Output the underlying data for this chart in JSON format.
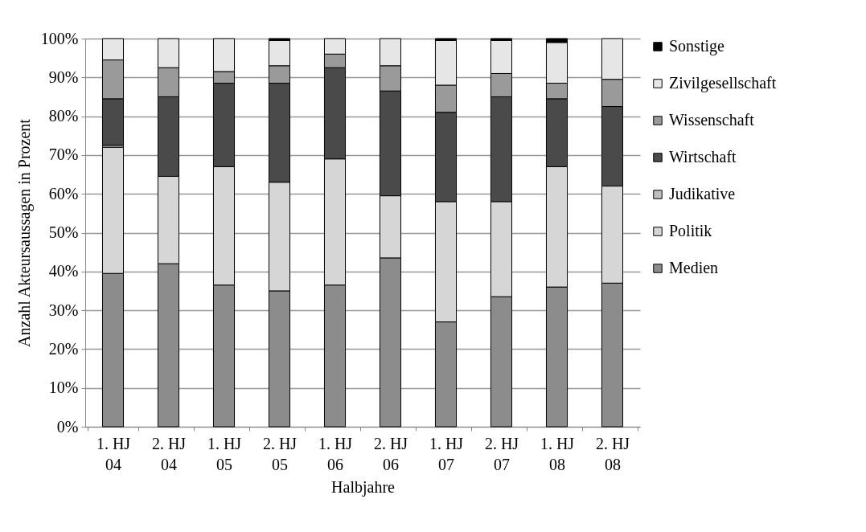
{
  "chart_data": {
    "type": "bar",
    "stacked": true,
    "xlabel": "Halbjahre",
    "ylabel": "Anzahl Akteursaussagen in Prozent",
    "categories": [
      "1. HJ 04",
      "2. HJ 04",
      "1. HJ 05",
      "2. HJ 05",
      "1. HJ 06",
      "2. HJ 06",
      "1. HJ 07",
      "2. HJ 07",
      "1. HJ 08",
      "2. HJ 08"
    ],
    "series": [
      {
        "name": "Medien",
        "color": "#8c8c8c",
        "values": [
          39.5,
          42,
          36.5,
          35,
          36.5,
          43.5,
          27,
          33.5,
          36,
          37
        ]
      },
      {
        "name": "Politik",
        "color": "#d6d6d6",
        "values": [
          32.5,
          22.5,
          30.5,
          28,
          32.5,
          16,
          31,
          24.5,
          31,
          25
        ]
      },
      {
        "name": "Judikative",
        "color": "#bfbfbf",
        "values": [
          0.5,
          0,
          0,
          0,
          0,
          0,
          0,
          0,
          0,
          0
        ]
      },
      {
        "name": "Wirtschaft",
        "color": "#4a4a4a",
        "values": [
          12,
          20.5,
          21.5,
          25.5,
          23.5,
          27,
          23,
          27,
          17.5,
          20.5
        ]
      },
      {
        "name": "Wissenschaft",
        "color": "#9a9a9a",
        "values": [
          10,
          7.5,
          3,
          4.5,
          3.5,
          6.5,
          7,
          6,
          4,
          7
        ]
      },
      {
        "name": "Zivilgesellschaft",
        "color": "#e6e6e6",
        "values": [
          5.5,
          7.5,
          8.5,
          6.5,
          4,
          7,
          11.5,
          8.5,
          10.5,
          10.5
        ]
      },
      {
        "name": "Sonstige",
        "color": "#000000",
        "values": [
          0,
          0,
          0,
          0.5,
          0,
          0,
          0.5,
          0.5,
          1,
          0
        ]
      }
    ],
    "ylim": [
      0,
      100
    ],
    "yticks": [
      {
        "value": 0,
        "label": "0%"
      },
      {
        "value": 10,
        "label": "10%"
      },
      {
        "value": 20,
        "label": "20%"
      },
      {
        "value": 30,
        "label": "30%"
      },
      {
        "value": 40,
        "label": "40%"
      },
      {
        "value": 50,
        "label": "50%"
      },
      {
        "value": 60,
        "label": "60%"
      },
      {
        "value": 70,
        "label": "70%"
      },
      {
        "value": 80,
        "label": "80%"
      },
      {
        "value": 90,
        "label": "90%"
      },
      {
        "value": 100,
        "label": "100%"
      }
    ],
    "grid": "y",
    "legend": "right"
  }
}
